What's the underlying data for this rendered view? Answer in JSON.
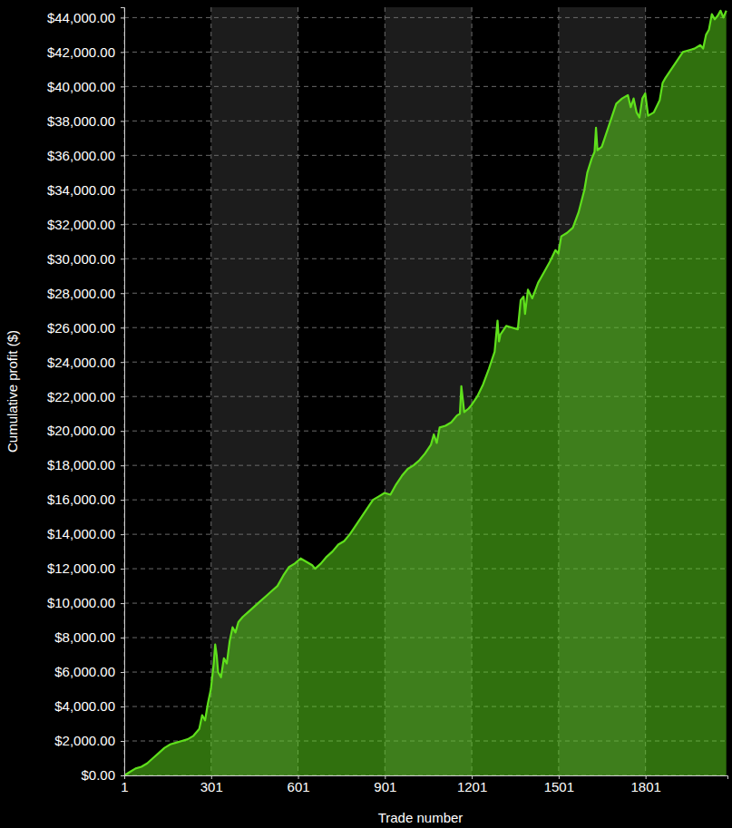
{
  "chart_data": {
    "type": "area",
    "x_label": "Trade number",
    "y_label": "Cumulative profit ($)",
    "x": [
      1,
      20,
      40,
      60,
      80,
      100,
      120,
      140,
      160,
      180,
      200,
      220,
      240,
      260,
      270,
      280,
      290,
      300,
      310,
      315,
      320,
      325,
      335,
      345,
      355,
      365,
      375,
      385,
      395,
      410,
      430,
      450,
      470,
      490,
      510,
      530,
      550,
      570,
      590,
      610,
      630,
      650,
      660,
      680,
      700,
      720,
      740,
      760,
      780,
      800,
      820,
      840,
      860,
      880,
      900,
      920,
      940,
      960,
      980,
      1000,
      1020,
      1040,
      1060,
      1070,
      1080,
      1090,
      1110,
      1130,
      1150,
      1160,
      1165,
      1175,
      1190,
      1200,
      1220,
      1240,
      1260,
      1280,
      1290,
      1295,
      1300,
      1320,
      1340,
      1360,
      1370,
      1380,
      1385,
      1395,
      1410,
      1430,
      1450,
      1470,
      1490,
      1500,
      1510,
      1530,
      1550,
      1570,
      1590,
      1600,
      1615,
      1625,
      1630,
      1635,
      1650,
      1670,
      1690,
      1700,
      1720,
      1740,
      1750,
      1760,
      1770,
      1780,
      1790,
      1800,
      1810,
      1830,
      1850,
      1860,
      1870,
      1890,
      1910,
      1930,
      1950,
      1970,
      1990,
      2000,
      2010,
      2020,
      2030,
      2040,
      2050,
      2060,
      2070,
      2080
    ],
    "series": [
      {
        "name": "Cumulative profit",
        "color": "#5fe01c",
        "values": [
          0,
          200,
          400,
          500,
          700,
          1000,
          1300,
          1600,
          1800,
          1900,
          2000,
          2100,
          2300,
          2700,
          3500,
          3200,
          4200,
          5000,
          6500,
          7600,
          7000,
          6000,
          5700,
          6800,
          6500,
          7800,
          8600,
          8300,
          8900,
          9200,
          9500,
          9800,
          10100,
          10400,
          10700,
          11000,
          11600,
          12100,
          12300,
          12600,
          12400,
          12200,
          12000,
          12300,
          12700,
          13000,
          13400,
          13600,
          14000,
          14500,
          15000,
          15500,
          16000,
          16200,
          16400,
          16300,
          16900,
          17400,
          17800,
          18000,
          18300,
          18700,
          19200,
          19800,
          19300,
          20200,
          20300,
          20500,
          20900,
          21000,
          22600,
          21100,
          21300,
          21500,
          22000,
          22700,
          23600,
          24600,
          26400,
          25200,
          25600,
          26100,
          26000,
          25900,
          27600,
          27800,
          26800,
          28200,
          27700,
          28600,
          29200,
          29800,
          30500,
          30300,
          31300,
          31500,
          31800,
          32700,
          34000,
          35000,
          35800,
          36200,
          37600,
          36300,
          36500,
          37500,
          38500,
          39000,
          39300,
          39500,
          38800,
          39300,
          38500,
          38200,
          39300,
          39600,
          38300,
          38500,
          39200,
          40200,
          40500,
          41000,
          41500,
          42000,
          42100,
          42200,
          42400,
          42200,
          43000,
          43300,
          44200,
          43900,
          44100,
          44400,
          44000,
          44400
        ]
      }
    ],
    "xlim": [
      1,
      2084
    ],
    "ylim": [
      0,
      44600
    ],
    "xticks": [
      1,
      301,
      601,
      901,
      1201,
      1501,
      1801
    ],
    "yticks": [
      {
        "value": 0,
        "label": "$0.00"
      },
      {
        "value": 2000,
        "label": "$2,000.00"
      },
      {
        "value": 4000,
        "label": "$4,000.00"
      },
      {
        "value": 6000,
        "label": "$6,000.00"
      },
      {
        "value": 8000,
        "label": "$8,000.00"
      },
      {
        "value": 10000,
        "label": "$10,000.00"
      },
      {
        "value": 12000,
        "label": "$12,000.00"
      },
      {
        "value": 14000,
        "label": "$14,000.00"
      },
      {
        "value": 16000,
        "label": "$16,000.00"
      },
      {
        "value": 18000,
        "label": "$18,000.00"
      },
      {
        "value": 20000,
        "label": "$20,000.00"
      },
      {
        "value": 22000,
        "label": "$22,000.00"
      },
      {
        "value": 24000,
        "label": "$24,000.00"
      },
      {
        "value": 26000,
        "label": "$26,000.00"
      },
      {
        "value": 28000,
        "label": "$28,000.00"
      },
      {
        "value": 30000,
        "label": "$30,000.00"
      },
      {
        "value": 32000,
        "label": "$32,000.00"
      },
      {
        "value": 34000,
        "label": "$34,000.00"
      },
      {
        "value": 36000,
        "label": "$36,000.00"
      },
      {
        "value": 38000,
        "label": "$38,000.00"
      },
      {
        "value": 40000,
        "label": "$40,000.00"
      },
      {
        "value": 42000,
        "label": "$42,000.00"
      },
      {
        "value": 44000,
        "label": "$44,000.00"
      }
    ],
    "grid": true
  }
}
